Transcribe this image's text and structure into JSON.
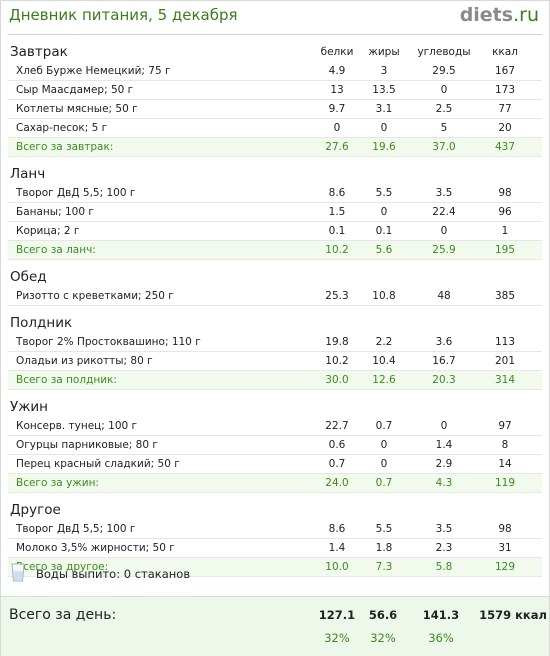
{
  "header": {
    "title": "Дневник питания, 5 декабря",
    "brand_name": "diets",
    "brand_tld": ".ru"
  },
  "columns": [
    "белки",
    "жиры",
    "углеводы",
    "ккал"
  ],
  "meals": [
    {
      "name": "Завтрак",
      "show_columns": true,
      "items": [
        {
          "name": "Хлеб Бурже Немецкий; 75 г",
          "values": [
            "4.9",
            "3",
            "29.5",
            "167"
          ]
        },
        {
          "name": "Сыр Маасдамер; 50 г",
          "values": [
            "13",
            "13.5",
            "0",
            "173"
          ]
        },
        {
          "name": "Котлеты мясные; 50 г",
          "values": [
            "9.7",
            "3.1",
            "2.5",
            "77"
          ]
        },
        {
          "name": "Сахар-песок; 5 г",
          "values": [
            "0",
            "0",
            "5",
            "20"
          ]
        }
      ],
      "total": {
        "label": "Всего за завтрак:",
        "values": [
          "27.6",
          "19.6",
          "37.0",
          "437"
        ]
      }
    },
    {
      "name": "Ланч",
      "items": [
        {
          "name": "Творог ДвД 5,5; 100 г",
          "values": [
            "8.6",
            "5.5",
            "3.5",
            "98"
          ]
        },
        {
          "name": "Бананы; 100 г",
          "values": [
            "1.5",
            "0",
            "22.4",
            "96"
          ]
        },
        {
          "name": "Корица; 2 г",
          "values": [
            "0.1",
            "0.1",
            "0",
            "1"
          ]
        }
      ],
      "total": {
        "label": "Всего за ланч:",
        "values": [
          "10.2",
          "5.6",
          "25.9",
          "195"
        ]
      }
    },
    {
      "name": "Обед",
      "items": [
        {
          "name": "Ризотто с креветками; 250 г",
          "values": [
            "25.3",
            "10.8",
            "48",
            "385"
          ]
        }
      ],
      "total": null
    },
    {
      "name": "Полдник",
      "items": [
        {
          "name": "Творог 2% Простоквашино; 110 г",
          "values": [
            "19.8",
            "2.2",
            "3.6",
            "113"
          ]
        },
        {
          "name": "Оладьи из рикотты; 80 г",
          "values": [
            "10.2",
            "10.4",
            "16.7",
            "201"
          ]
        }
      ],
      "total": {
        "label": "Всего за полдник:",
        "values": [
          "30.0",
          "12.6",
          "20.3",
          "314"
        ]
      }
    },
    {
      "name": "Ужин",
      "items": [
        {
          "name": "Консерв. тунец; 100 г",
          "values": [
            "22.7",
            "0.7",
            "0",
            "97"
          ]
        },
        {
          "name": "Огурцы парниковые; 80 г",
          "values": [
            "0.6",
            "0",
            "1.4",
            "8"
          ]
        },
        {
          "name": "Перец красный сладкий; 50 г",
          "values": [
            "0.7",
            "0",
            "2.9",
            "14"
          ]
        }
      ],
      "total": {
        "label": "Всего за ужин:",
        "values": [
          "24.0",
          "0.7",
          "4.3",
          "119"
        ]
      }
    },
    {
      "name": "Другое",
      "items": [
        {
          "name": "Творог ДвД 5,5; 100 г",
          "values": [
            "8.6",
            "5.5",
            "3.5",
            "98"
          ]
        },
        {
          "name": "Молоко 3,5% жирности; 50 г",
          "values": [
            "1.4",
            "1.8",
            "2.3",
            "31"
          ]
        }
      ],
      "total": {
        "label": "Всего за другое:",
        "values": [
          "10.0",
          "7.3",
          "5.8",
          "129"
        ]
      }
    }
  ],
  "water": {
    "text": "Воды выпито: 0 стаканов",
    "icon": "glass-icon"
  },
  "day_total": {
    "label": "Всего за день:",
    "values": [
      "127.1",
      "56.6",
      "141.3",
      "1579 ккал"
    ],
    "percents": [
      "32%",
      "32%",
      "36%"
    ]
  },
  "colors": {
    "accent": "#3a7d1f",
    "total_bg": "#f2faee",
    "day_bg": "#eef8ea"
  }
}
